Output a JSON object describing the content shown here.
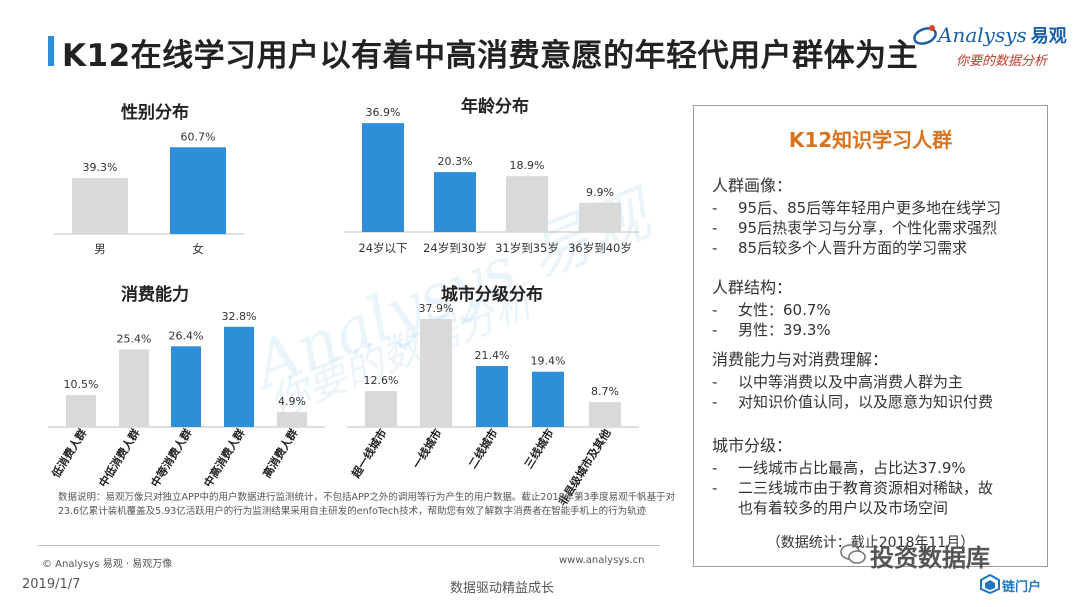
{
  "header": {
    "title": "K12在线学习用户以有着中高消费意愿的年轻代用户群体为主",
    "logo_text": "Analysys",
    "logo_cn": "易观",
    "logo_slogan": "你要的数据分析"
  },
  "colors": {
    "accent": "#2e8fd8",
    "grey_bar": "#d9d9d9",
    "title_bar": "#2e8fd8",
    "side_title": "#d8731f"
  },
  "chart_data": [
    {
      "type": "bar",
      "title": "性别分布",
      "categories": [
        "男",
        "女"
      ],
      "values": [
        39.3,
        60.7
      ],
      "labels": [
        "39.3%",
        "60.7%"
      ],
      "highlight": [
        false,
        true
      ],
      "ylim": [
        0,
        70
      ]
    },
    {
      "type": "bar",
      "title": "年龄分布",
      "categories": [
        "24岁以下",
        "24岁到30岁",
        "31岁到35岁",
        "36岁到40岁"
      ],
      "values": [
        36.9,
        20.3,
        18.9,
        9.9
      ],
      "labels": [
        "36.9%",
        "20.3%",
        "18.9%",
        "9.9%"
      ],
      "highlight": [
        true,
        true,
        false,
        false
      ],
      "ylim": [
        0,
        40
      ]
    },
    {
      "type": "bar",
      "title": "消费能力",
      "categories": [
        "低消费人群",
        "中低消费人群",
        "中等消费人群",
        "中高消费人群",
        "高消费人群"
      ],
      "values": [
        10.5,
        25.4,
        26.4,
        32.8,
        4.9
      ],
      "labels": [
        "10.5%",
        "25.4%",
        "26.4%",
        "32.8%",
        "4.9%"
      ],
      "highlight": [
        false,
        false,
        true,
        true,
        false
      ],
      "ylim": [
        0,
        36
      ]
    },
    {
      "type": "bar",
      "title": "城市分级分布",
      "categories": [
        "超一线城市",
        "一线城市",
        "二线城市",
        "三线城市",
        "非县级城市及其他"
      ],
      "values": [
        12.6,
        37.9,
        21.4,
        19.4,
        8.7
      ],
      "labels": [
        "12.6%",
        "37.9%",
        "21.4%",
        "19.4%",
        "8.7%"
      ],
      "highlight": [
        false,
        false,
        true,
        true,
        false
      ],
      "ylim": [
        0,
        40
      ]
    }
  ],
  "sidebox": {
    "title": "K12知识学习人群",
    "sections": [
      {
        "head": "人群画像：",
        "items": [
          "95后、85后等年轻用户更多地在线学习",
          "95后热衷学习与分享，个性化需求强烈",
          "85后较多个人晋升方面的学习需求"
        ]
      },
      {
        "head": "人群结构：",
        "items": [
          "女性：60.7%",
          "男性：39.3%"
        ]
      },
      {
        "head": "消费能力与对消费理解：",
        "items": [
          "以中等消费以及中高消费人群为主",
          "对知识价值认同，以及愿意为知识付费"
        ]
      },
      {
        "head": "城市分级：",
        "items": [
          "一线城市占比最高，占比达37.9%",
          "二三线城市由于教育资源相对稀缺，故",
          "也有着较多的用户以及市场空间"
        ]
      }
    ],
    "stat": "（数据统计：截止2018年11月）",
    "dash": "-"
  },
  "note": "数据说明：易观万像只对独立APP中的用户数据进行监测统计，不包括APP之外的调用等行为产生的用户数据。截止2018年第3季度易观千帆基于对23.6亿累计装机覆盖及5.93亿活跃用户的行为监测结果采用自主研发的enfoTech技术，帮助您有效了解数字消费者在智能手机上的行为轨迹",
  "footer": {
    "copyright": "© Analysys 易观 · 易观万像",
    "url": "www.analysys.cn",
    "date": "2019/1/7",
    "slogan": "数据驱动精益成长"
  },
  "watermark": {
    "text": "投资数据库",
    "brand": "链门户",
    "bg": "Analysys 易观",
    "bg_sub": "你要的数据分析"
  }
}
